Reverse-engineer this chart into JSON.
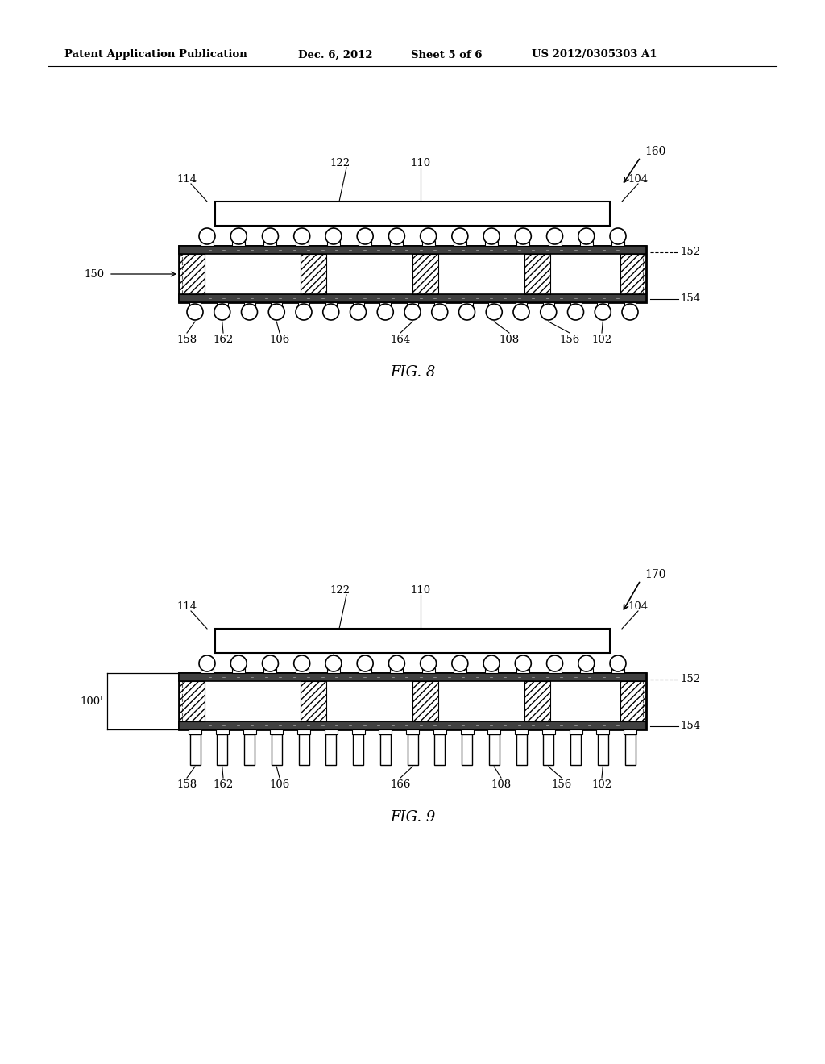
{
  "bg_color": "#ffffff",
  "line_color": "#000000",
  "header_text": "Patent Application Publication",
  "header_date": "Dec. 6, 2012",
  "header_sheet": "Sheet 5 of 6",
  "header_patent": "US 2012/0305303 A1",
  "fig8_label": "FIG. 8",
  "fig9_label": "FIG. 9",
  "fig8_ref": "160",
  "fig9_ref": "170"
}
